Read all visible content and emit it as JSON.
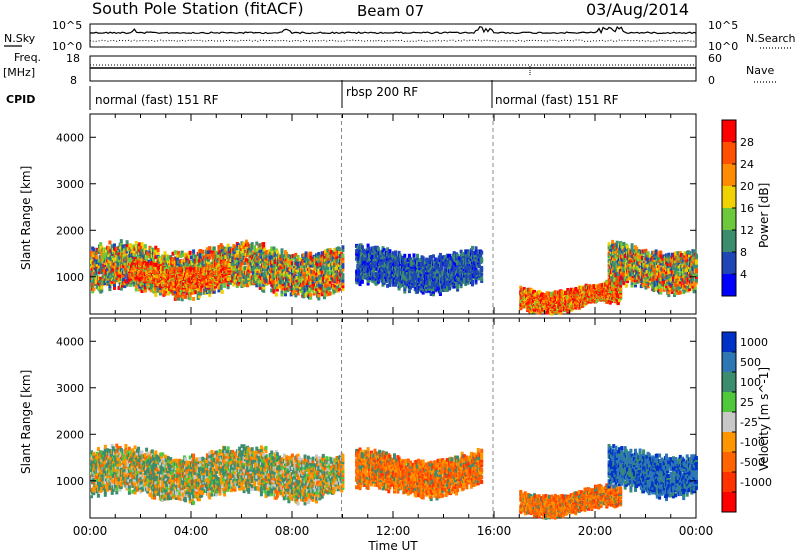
{
  "header": {
    "station": "South Pole Station (fitACF)",
    "beam": "Beam 07",
    "date": "03/Aug/2014"
  },
  "top_panels": {
    "nsky_label": "N.Sky",
    "nsky_tick_top": "10^5",
    "nsky_tick_bottom": "10^0",
    "nsearch_label": "N.Search",
    "nsearch_tick_top": "10^5",
    "nsearch_tick_bottom": "10^0",
    "freq_label": "Freq.",
    "freq_unit": "[MHz]",
    "freq_tick_top": "18",
    "freq_tick_bottom": "8",
    "nave_label": "Nave",
    "nave_tick_top": "60",
    "nave_tick_bottom": "0",
    "cpid_label": "CPID",
    "cpid_segments": [
      {
        "label": "normal (fast) 151 RF",
        "start_hour": 0,
        "end_hour": 10
      },
      {
        "label": "rbsp 200 RF",
        "start_hour": 10,
        "end_hour": 16
      },
      {
        "label": "normal (fast) 151 RF",
        "start_hour": 16,
        "end_hour": 24
      }
    ]
  },
  "chart_data": [
    {
      "type": "heatmap",
      "title": "",
      "xlabel": "",
      "ylabel": "Slant Range [km]",
      "xlim": [
        0,
        24
      ],
      "ylim": [
        200,
        4500
      ],
      "yticks": [
        "1000",
        "2000",
        "3000",
        "4000"
      ],
      "colorbar": {
        "label": "Power [dB]",
        "ticks": [
          "4",
          "8",
          "12",
          "16",
          "20",
          "24",
          "28"
        ],
        "colors": [
          "#0000ff",
          "#1e46b4",
          "#3c8c6e",
          "#6ec83c",
          "#f0d200",
          "#ff8c00",
          "#ff5000",
          "#ff0000"
        ]
      },
      "echo_regions": [
        {
          "x": [
            0.0,
            10.0
          ],
          "range": [
            600,
            1700
          ],
          "level": "high"
        },
        {
          "x": [
            1.5,
            5.5
          ],
          "range": [
            800,
            1300
          ],
          "level": "peak"
        },
        {
          "x": [
            10.5,
            15.5
          ],
          "range": [
            700,
            1600
          ],
          "level": "low"
        },
        {
          "x": [
            17.0,
            21.0
          ],
          "range": [
            300,
            800
          ],
          "level": "peak"
        },
        {
          "x": [
            20.5,
            24.0
          ],
          "range": [
            700,
            1700
          ],
          "level": "high"
        }
      ]
    },
    {
      "type": "heatmap",
      "title": "",
      "xlabel": "Time UT",
      "ylabel": "Slant Range [km]",
      "xlim": [
        0,
        24
      ],
      "ylim": [
        200,
        4500
      ],
      "xticks": [
        "00:00",
        "04:00",
        "08:00",
        "12:00",
        "16:00",
        "20:00",
        "00:00"
      ],
      "yticks": [
        "1000",
        "2000",
        "3000",
        "4000"
      ],
      "colorbar": {
        "label": "Velocity [m s^-1]",
        "ticks": [
          "1000",
          "500",
          "100",
          "25",
          "-25",
          "-100",
          "-500",
          "-1000"
        ],
        "colors": [
          "#0032c8",
          "#2d78b4",
          "#3c8c6e",
          "#50c83c",
          "#c8c8c8",
          "#ff9600",
          "#ff6400",
          "#ff3200",
          "#ff0000"
        ]
      },
      "echo_regions": [
        {
          "x": [
            0.0,
            10.0
          ],
          "range": [
            600,
            1700
          ],
          "velocity": "mixed toward/away"
        },
        {
          "x": [
            10.5,
            15.5
          ],
          "range": [
            700,
            1600
          ],
          "velocity": "away"
        },
        {
          "x": [
            17.0,
            21.0
          ],
          "range": [
            300,
            800
          ],
          "velocity": "away"
        },
        {
          "x": [
            20.5,
            24.0
          ],
          "range": [
            700,
            1700
          ],
          "velocity": "toward"
        }
      ]
    }
  ]
}
